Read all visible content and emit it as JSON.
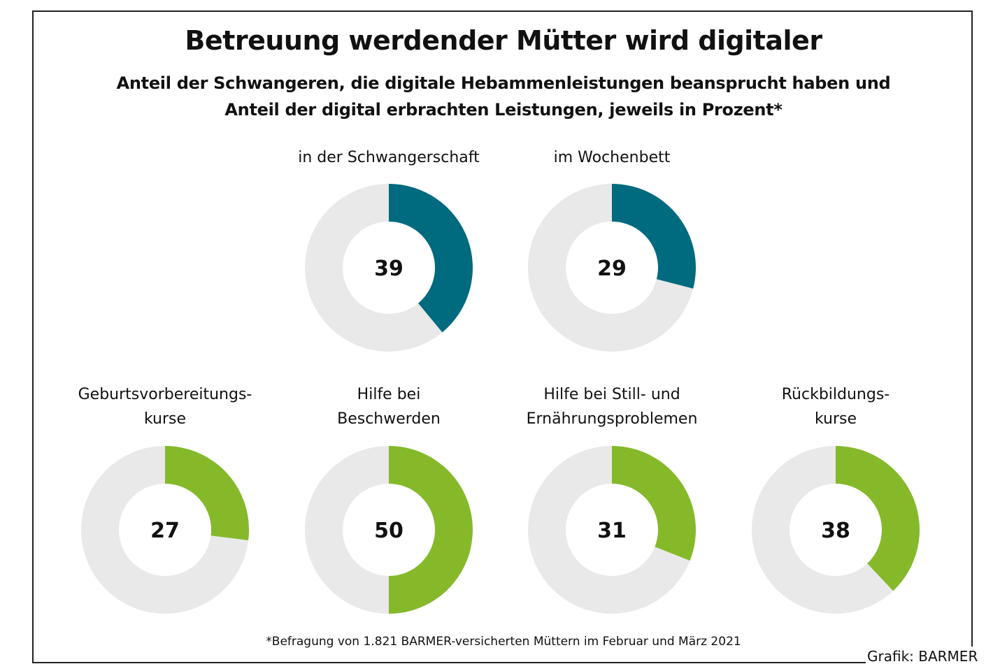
{
  "header": {
    "title": "Betreuung werdender Mütter wird digitaler",
    "subtitle_line1": "Anteil der Schwangeren, die digitale Hebammenleistungen beansprucht haben und",
    "subtitle_line2": "Anteil der digital erbrachten Leistungen, jeweils in Prozent*"
  },
  "footer": {
    "footnote": "*Befragung von 1.821 BARMER-versicherten Müttern im Februar und März 2021",
    "credit": "Grafik: BARMER"
  },
  "colors": {
    "teal": "#006a7f",
    "green": "#85b92a",
    "remainder": "#e9e9e9"
  },
  "chart_data": {
    "type": "pie",
    "variant": "donut",
    "title": "Betreuung werdender Mütter wird digitaler",
    "subtitle": "Anteil der Schwangeren, die digitale Hebammenleistungen beansprucht haben und Anteil der digital erbrachten Leistungen, jeweils in Prozent*",
    "unit": "Prozent",
    "max": 100,
    "charts": [
      {
        "label_lines": [
          "in der Schwangerschaft"
        ],
        "value": 39,
        "color_key": "teal",
        "row": 1
      },
      {
        "label_lines": [
          "im Wochenbett"
        ],
        "value": 29,
        "color_key": "teal",
        "row": 1
      },
      {
        "label_lines": [
          "Geburtsvorbereitungs-",
          "kurse"
        ],
        "value": 27,
        "color_key": "green",
        "row": 2
      },
      {
        "label_lines": [
          "Hilfe bei",
          "Beschwerden"
        ],
        "value": 50,
        "color_key": "green",
        "row": 2
      },
      {
        "label_lines": [
          "Hilfe bei Still- und",
          "Ernährungsproblemen"
        ],
        "value": 31,
        "color_key": "green",
        "row": 2
      },
      {
        "label_lines": [
          "Rückbildungs-",
          "kurse"
        ],
        "value": 38,
        "color_key": "green",
        "row": 2
      }
    ]
  }
}
